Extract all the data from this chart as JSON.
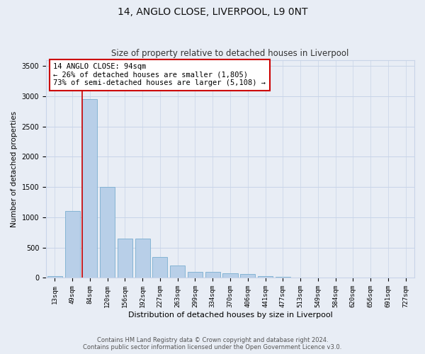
{
  "title": "14, ANGLO CLOSE, LIVERPOOL, L9 0NT",
  "subtitle": "Size of property relative to detached houses in Liverpool",
  "xlabel": "Distribution of detached houses by size in Liverpool",
  "ylabel": "Number of detached properties",
  "categories": [
    "13sqm",
    "49sqm",
    "84sqm",
    "120sqm",
    "156sqm",
    "192sqm",
    "227sqm",
    "263sqm",
    "299sqm",
    "334sqm",
    "370sqm",
    "406sqm",
    "441sqm",
    "477sqm",
    "513sqm",
    "549sqm",
    "584sqm",
    "620sqm",
    "656sqm",
    "691sqm",
    "727sqm"
  ],
  "values": [
    30,
    1100,
    2950,
    1500,
    650,
    650,
    340,
    210,
    100,
    100,
    80,
    60,
    30,
    15,
    8,
    5,
    3,
    2,
    2,
    1,
    1
  ],
  "bar_color": "#b8cfe8",
  "bar_edge_color": "#7aaed0",
  "red_line_color": "#cc0000",
  "red_line_bin_index": 2,
  "annotation_title": "14 ANGLO CLOSE: 94sqm",
  "annotation_line1": "← 26% of detached houses are smaller (1,805)",
  "annotation_line2": "73% of semi-detached houses are larger (5,108) →",
  "annotation_box_facecolor": "#ffffff",
  "annotation_box_edgecolor": "#cc0000",
  "ylim": [
    0,
    3600
  ],
  "yticks": [
    0,
    500,
    1000,
    1500,
    2000,
    2500,
    3000,
    3500
  ],
  "grid_color": "#c8d4e8",
  "bg_color": "#e8edf5",
  "title_fontsize": 10,
  "subtitle_fontsize": 8.5,
  "xlabel_fontsize": 8,
  "ylabel_fontsize": 7.5,
  "tick_fontsize": 6.5,
  "footer_line1": "Contains HM Land Registry data © Crown copyright and database right 2024.",
  "footer_line2": "Contains public sector information licensed under the Open Government Licence v3.0."
}
